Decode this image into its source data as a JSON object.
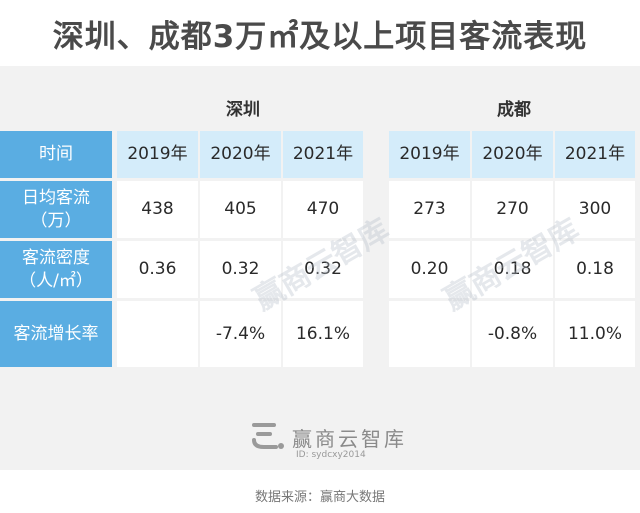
{
  "title": "深圳、成都3万㎡及以上项目客流表现",
  "city_left": "深圳",
  "city_right": "成都",
  "row_labels": {
    "time": "时间",
    "daily_line1": "日均客流",
    "daily_line2": "（万）",
    "density_line1": "客流密度",
    "density_line2": "（人/㎡）",
    "growth": "客流增长率"
  },
  "years": [
    "2019年",
    "2020年",
    "2021年"
  ],
  "shenzhen": {
    "daily": [
      "438",
      "405",
      "470"
    ],
    "density": [
      "0.36",
      "0.32",
      "0.32"
    ],
    "growth": [
      "",
      "-7.4%",
      "16.1%"
    ]
  },
  "chengdu": {
    "daily": [
      "273",
      "270",
      "300"
    ],
    "density": [
      "0.20",
      "0.18",
      "0.18"
    ],
    "growth": [
      "",
      "-0.8%",
      "11.0%"
    ]
  },
  "watermark": "赢商云智库",
  "brand": {
    "name": "赢商云智库",
    "id": "ID: sydcxy2014"
  },
  "source": "数据来源：赢商大数据",
  "colors": {
    "label_bg": "#5aade2",
    "header_bg": "#d4ecfa",
    "panel_bg": "#f2f2f2"
  }
}
